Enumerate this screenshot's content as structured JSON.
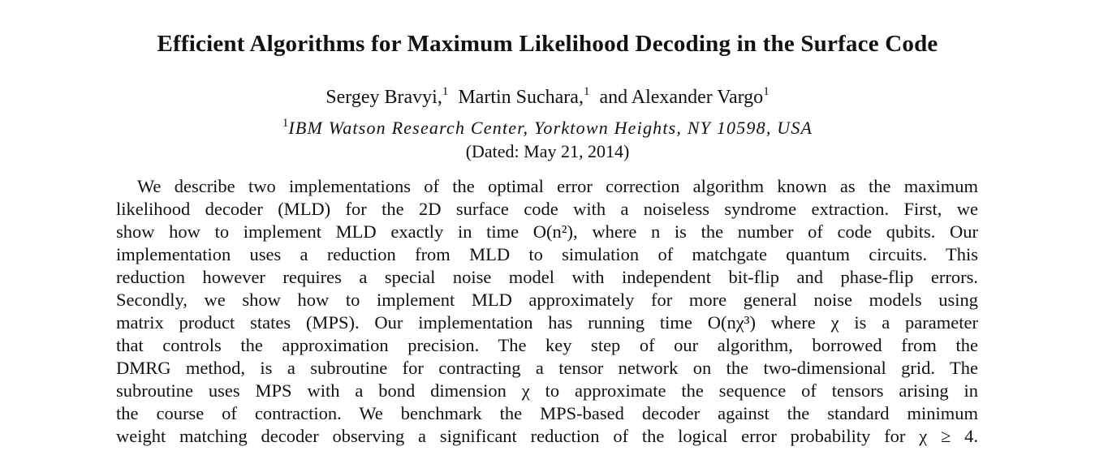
{
  "paper": {
    "title": "Efficient Algorithms for Maximum Likelihood Decoding in the Surface Code",
    "authors": [
      {
        "name": "Sergey Bravyi,",
        "affil": "1"
      },
      {
        "name": "Martin Suchara,",
        "affil": "1"
      },
      {
        "name": "and Alexander Vargo",
        "affil": "1"
      }
    ],
    "affiliation": {
      "marker": "1",
      "text": "IBM Watson Research Center, Yorktown Heights, NY 10598, USA"
    },
    "dated": "(Dated: May 21, 2014)",
    "abstract_lines": [
      "We describe two implementations of the optimal error correction algorithm known as the maximum",
      "likelihood decoder (MLD) for the 2D surface code with a noiseless syndrome extraction. First, we",
      "show how to implement MLD exactly in time O(n²), where n is the number of code qubits. Our",
      "implementation uses a reduction from MLD to simulation of matchgate quantum circuits. This",
      "reduction however requires a special noise model with independent bit-flip and phase-flip errors.",
      "Secondly, we show how to implement MLD approximately for more general noise models using",
      "matrix product states (MPS). Our implementation has running time O(nχ³) where χ is a parameter",
      "that controls the approximation precision. The key step of our algorithm, borrowed from the",
      "DMRG method, is a subroutine for contracting a tensor network on the two-dimensional grid. The",
      "subroutine uses MPS with a bond dimension χ to approximate the sequence of tensors arising in",
      "the course of contraction. We benchmark the MPS-based decoder against the standard minimum",
      "weight matching decoder observing a significant reduction of the logical error probability for χ ≥ 4."
    ]
  }
}
